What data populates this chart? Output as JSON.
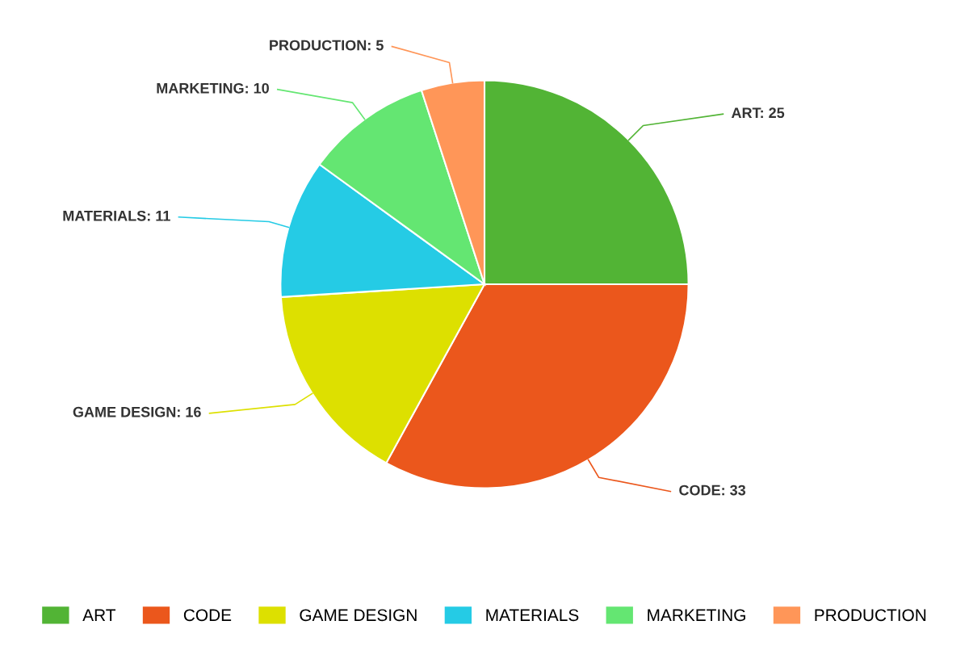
{
  "chart_data": {
    "type": "pie",
    "categories": [
      "ART",
      "CODE",
      "GAME DESIGN",
      "MATERIALS",
      "MARKETING",
      "PRODUCTION"
    ],
    "values": [
      25,
      33,
      16,
      11,
      10,
      5
    ],
    "value_labels": [
      "ART: 25",
      "CODE: 33",
      "GAME DESIGN: 16",
      "MATERIALS: 11",
      "MARKETING: 10",
      "PRODUCTION: 5"
    ],
    "colors": [
      "#52b435",
      "#eb571c",
      "#dde000",
      "#25cbe5",
      "#64e672",
      "#ff9658"
    ],
    "legend": "bottom"
  }
}
